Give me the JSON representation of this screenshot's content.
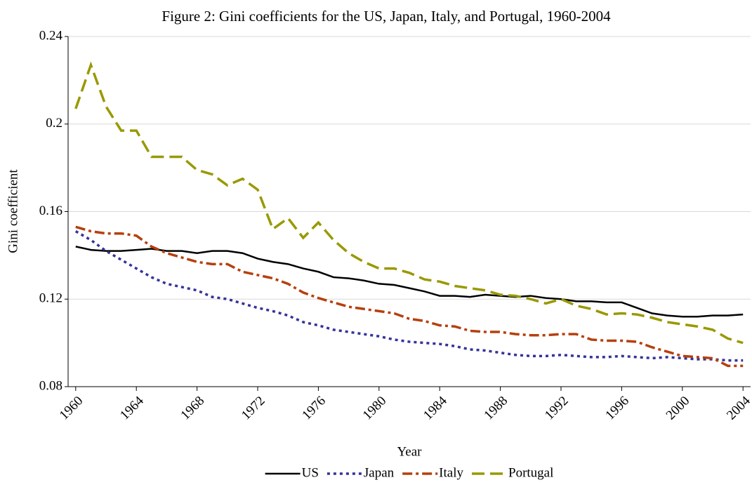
{
  "chart_data": {
    "type": "line",
    "title": "Figure 2: Gini coefficients for the US, Japan, Italy, and Portugal, 1960-2004",
    "xlabel": "Year",
    "ylabel": "Gini coefficient",
    "x": [
      1960,
      1961,
      1962,
      1963,
      1964,
      1965,
      1966,
      1967,
      1968,
      1969,
      1970,
      1971,
      1972,
      1973,
      1974,
      1975,
      1976,
      1977,
      1978,
      1979,
      1980,
      1981,
      1982,
      1983,
      1984,
      1985,
      1986,
      1987,
      1988,
      1989,
      1990,
      1991,
      1992,
      1993,
      1994,
      1995,
      1996,
      1997,
      1998,
      1999,
      2000,
      2001,
      2002,
      2003,
      2004
    ],
    "xlim": [
      1959.5,
      2004.5
    ],
    "xticks": [
      1960,
      1964,
      1968,
      1972,
      1976,
      1980,
      1984,
      1988,
      1992,
      1996,
      2000,
      2004
    ],
    "ylim": [
      0.08,
      0.24
    ],
    "yticks": [
      0.08,
      0.12,
      0.16,
      0.2,
      0.24
    ],
    "grid": true,
    "legend": "bottom",
    "series": [
      {
        "name": "US",
        "color": "#000000",
        "values": [
          0.144,
          0.1425,
          0.142,
          0.142,
          0.1425,
          0.143,
          0.142,
          0.142,
          0.141,
          0.142,
          0.142,
          0.141,
          0.1385,
          0.137,
          0.136,
          0.134,
          0.1325,
          0.13,
          0.1295,
          0.1285,
          0.127,
          0.1265,
          0.125,
          0.1235,
          0.1215,
          0.1215,
          0.121,
          0.122,
          0.1215,
          0.121,
          0.1215,
          0.1205,
          0.12,
          0.119,
          0.119,
          0.1185,
          0.1185,
          0.116,
          0.1135,
          0.1125,
          0.112,
          0.112,
          0.1125,
          0.1125,
          0.113
        ]
      },
      {
        "name": "Japan",
        "color": "#333399",
        "values": [
          0.151,
          0.147,
          0.142,
          0.138,
          0.134,
          0.13,
          0.127,
          0.1255,
          0.124,
          0.121,
          0.12,
          0.118,
          0.116,
          0.1145,
          0.1125,
          0.1095,
          0.108,
          0.106,
          0.105,
          0.104,
          0.103,
          0.1015,
          0.1005,
          0.1,
          0.0995,
          0.0985,
          0.097,
          0.0965,
          0.0955,
          0.0945,
          0.094,
          0.094,
          0.0945,
          0.094,
          0.0935,
          0.0935,
          0.094,
          0.0935,
          0.093,
          0.0935,
          0.093,
          0.0925,
          0.0925,
          0.092,
          0.092
        ]
      },
      {
        "name": "Italy",
        "color": "#b5400e",
        "values": [
          0.153,
          0.151,
          0.15,
          0.15,
          0.149,
          0.144,
          0.141,
          0.139,
          0.137,
          0.136,
          0.136,
          0.1325,
          0.131,
          0.1295,
          0.127,
          0.123,
          0.1205,
          0.1185,
          0.1165,
          0.1155,
          0.1145,
          0.1135,
          0.111,
          0.11,
          0.108,
          0.1075,
          0.1055,
          0.105,
          0.105,
          0.104,
          0.1035,
          0.1035,
          0.104,
          0.104,
          0.1015,
          0.101,
          0.101,
          0.1005,
          0.098,
          0.096,
          0.094,
          0.0935,
          0.093,
          0.0895,
          0.0895
        ]
      },
      {
        "name": "Portugal",
        "color": "#999900",
        "values": [
          0.207,
          0.227,
          0.208,
          0.197,
          0.197,
          0.185,
          0.185,
          0.185,
          0.179,
          0.177,
          0.172,
          0.175,
          0.17,
          0.152,
          0.157,
          0.148,
          0.155,
          0.147,
          0.141,
          0.137,
          0.134,
          0.134,
          0.132,
          0.129,
          0.128,
          0.126,
          0.125,
          0.124,
          0.122,
          0.1215,
          0.12,
          0.118,
          0.12,
          0.117,
          0.1155,
          0.113,
          0.1135,
          0.113,
          0.1115,
          0.1095,
          0.1085,
          0.1075,
          0.106,
          0.102,
          0.1
        ]
      }
    ]
  }
}
